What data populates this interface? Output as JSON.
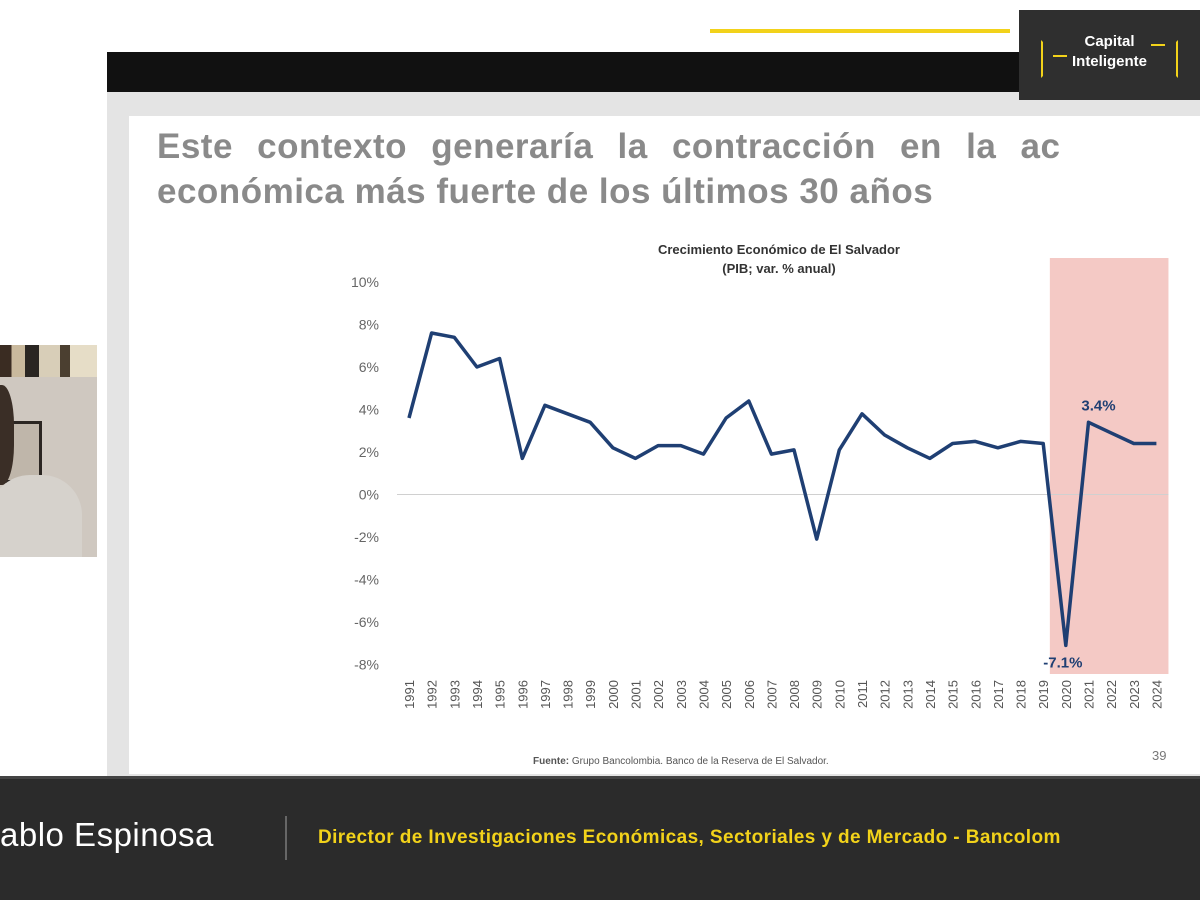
{
  "slide": {
    "title_line1": "Este contexto generaría la contracción en la ac",
    "title_line2": "económica más fuerte de los últimos 30 años",
    "source_label": "Fuente:",
    "source_text": " Grupo Bancolombia. Banco de la Reserva de El Salvador.",
    "page_number": "39"
  },
  "logo": {
    "line1": "Capital",
    "line2": "Inteligente"
  },
  "lower_third": {
    "presenter_name": "ablo Espinosa",
    "presenter_role": "Director de Investigaciones Económicas, Sectoriales y de Mercado - Bancolom"
  },
  "colors": {
    "line": "#1f3f73",
    "highlight": "#f4c9c5",
    "gold": "#f2d21a",
    "dark": "#2b2b2b"
  },
  "chart_data": {
    "type": "line",
    "title": "Crecimiento Económico de El Salvador",
    "subtitle": "(PIB; var. % anual)",
    "x": [
      "1991",
      "1992",
      "1993",
      "1994",
      "1995",
      "1996",
      "1997",
      "1998",
      "1999",
      "2000",
      "2001",
      "2002",
      "2003",
      "2004",
      "2005",
      "2006",
      "2007",
      "2008",
      "2009",
      "2010",
      "2011",
      "2012",
      "2013",
      "2014",
      "2015",
      "2016",
      "2017",
      "2018",
      "2019",
      "2020",
      "2021",
      "2022",
      "2023",
      "2024"
    ],
    "series": [
      {
        "values": [
          3.6,
          7.6,
          7.4,
          6.0,
          6.4,
          1.7,
          4.2,
          3.8,
          3.4,
          2.2,
          1.7,
          2.3,
          2.3,
          1.9,
          3.6,
          4.4,
          1.9,
          2.1,
          -2.1,
          2.1,
          3.8,
          2.8,
          2.2,
          1.7,
          2.4,
          2.5,
          2.2,
          2.5,
          2.4,
          -7.1,
          3.4,
          2.9,
          2.4,
          2.4
        ]
      }
    ],
    "yticks": [
      "10%",
      "8%",
      "6%",
      "4%",
      "2%",
      "0%",
      "-2%",
      "-4%",
      "-6%",
      "-8%"
    ],
    "ylim": [
      -8,
      10
    ],
    "highlight_range": [
      "2020",
      "2024"
    ],
    "annotations": [
      {
        "x": "2021",
        "label": "3.4%"
      },
      {
        "x": "2020",
        "label": "-7.1%"
      }
    ],
    "grid": false,
    "legend": "none"
  }
}
